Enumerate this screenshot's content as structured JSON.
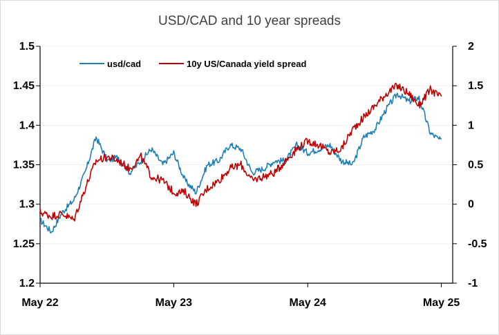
{
  "chart_data": {
    "type": "line",
    "title": "USD/CAD and 10 year spreads",
    "x_ticks": [
      "May 22",
      "May 23",
      "May 24",
      "May 25"
    ],
    "x_range": [
      "2022-05-01",
      "2025-06-01"
    ],
    "y_left": {
      "ticks": [
        "1.2",
        "1.25",
        "1.3",
        "1.35",
        "1.4",
        "1.45",
        "1.5"
      ],
      "ylim": [
        1.2,
        1.5
      ]
    },
    "y_right": {
      "ticks": [
        "-1",
        "-0.5",
        "0",
        "0.5",
        "1",
        "1.5",
        "2"
      ],
      "ylim": [
        -1,
        2
      ]
    },
    "grid": "horizontal",
    "legend_position": "top-left",
    "series": [
      {
        "name": "usd/cad",
        "axis": "left",
        "color": "#1f7fb4",
        "x": [
          "2022-05",
          "2022-06",
          "2022-07",
          "2022-08",
          "2022-09",
          "2022-10",
          "2022-11",
          "2022-12",
          "2023-01",
          "2023-02",
          "2023-03",
          "2023-04",
          "2023-05",
          "2023-06",
          "2023-07",
          "2023-08",
          "2023-09",
          "2023-10",
          "2023-11",
          "2023-12",
          "2024-01",
          "2024-02",
          "2024-03",
          "2024-04",
          "2024-05",
          "2024-06",
          "2024-07",
          "2024-08",
          "2024-09",
          "2024-10",
          "2024-11",
          "2024-12",
          "2025-01",
          "2025-02",
          "2025-03",
          "2025-04",
          "2025-05"
        ],
        "y": [
          1.28,
          1.265,
          1.29,
          1.305,
          1.34,
          1.385,
          1.355,
          1.36,
          1.34,
          1.355,
          1.37,
          1.35,
          1.365,
          1.33,
          1.315,
          1.35,
          1.355,
          1.375,
          1.37,
          1.34,
          1.345,
          1.355,
          1.355,
          1.375,
          1.365,
          1.37,
          1.375,
          1.355,
          1.35,
          1.385,
          1.395,
          1.42,
          1.44,
          1.43,
          1.435,
          1.39,
          1.38
        ]
      },
      {
        "name": "10y US/Canada yield spread",
        "axis": "right",
        "color": "#c00000",
        "x": [
          "2022-05",
          "2022-06",
          "2022-07",
          "2022-08",
          "2022-09",
          "2022-10",
          "2022-11",
          "2022-12",
          "2023-01",
          "2023-02",
          "2023-03",
          "2023-04",
          "2023-05",
          "2023-06",
          "2023-07",
          "2023-08",
          "2023-09",
          "2023-10",
          "2023-11",
          "2023-12",
          "2024-01",
          "2024-02",
          "2024-03",
          "2024-04",
          "2024-05",
          "2024-06",
          "2024-07",
          "2024-08",
          "2024-09",
          "2024-10",
          "2024-11",
          "2024-12",
          "2025-01",
          "2025-02",
          "2025-03",
          "2025-04",
          "2025-05"
        ],
        "y": [
          -0.1,
          -0.15,
          -0.12,
          -0.2,
          0.2,
          0.55,
          0.6,
          0.55,
          0.45,
          0.6,
          0.35,
          0.3,
          0.15,
          0.15,
          0.0,
          0.2,
          0.3,
          0.45,
          0.5,
          0.3,
          0.35,
          0.4,
          0.55,
          0.7,
          0.8,
          0.75,
          0.65,
          0.7,
          0.95,
          1.1,
          1.25,
          1.4,
          1.5,
          1.4,
          1.25,
          1.45,
          1.35
        ]
      }
    ]
  }
}
